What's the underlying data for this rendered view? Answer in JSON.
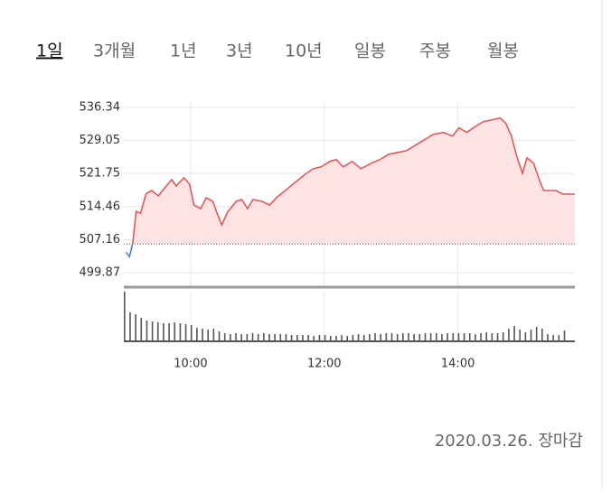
{
  "tabs": [
    "1일",
    "3개월",
    "1년",
    "3년",
    "10년",
    "일봉",
    "주봉",
    "월봉"
  ],
  "footer": "2020.03.26. 장마감",
  "chart_data": {
    "type": "line",
    "x": [
      542,
      545,
      548,
      551,
      555,
      560,
      565,
      571,
      576,
      583,
      587,
      594,
      599,
      603,
      609,
      614,
      620,
      624,
      628,
      633,
      641,
      646,
      651,
      656,
      664,
      671,
      677,
      687,
      697,
      703,
      710,
      717,
      725,
      731,
      737,
      745,
      753,
      762,
      770,
      778,
      786,
      794,
      802,
      810,
      818,
      827,
      835,
      841,
      848,
      855,
      863,
      871,
      878,
      883,
      888,
      893,
      898,
      902,
      908,
      913,
      917,
      928,
      934,
      945
    ],
    "values": [
      504.4,
      503.4,
      506.4,
      513.4,
      513,
      517.3,
      518,
      516.8,
      518.4,
      520.4,
      519,
      520.8,
      519.4,
      514.8,
      514,
      516.4,
      515.6,
      512.8,
      510.4,
      513.2,
      515.6,
      516,
      514,
      516,
      515.6,
      514.8,
      516.4,
      518.4,
      520.4,
      521.6,
      522.8,
      523.2,
      524.4,
      524.8,
      523.2,
      524.4,
      522.8,
      524,
      524.8,
      526,
      526.4,
      526.8,
      528,
      529.2,
      530.4,
      530.8,
      530,
      531.8,
      530.8,
      532,
      533.2,
      533.6,
      534,
      532.8,
      530,
      525.4,
      521.8,
      525.2,
      524,
      520.4,
      518,
      518,
      517.2,
      517.2
    ],
    "color": "#e05a5a",
    "down_color": "#4a7fe0",
    "fill_color": "#fde3e3",
    "base_value": 506.2,
    "xlim": [
      540,
      945
    ],
    "ylim": [
      496.7,
      537.7
    ],
    "yticks": [
      536.34,
      529.05,
      521.75,
      514.46,
      507.16,
      499.87
    ],
    "xticks": [
      {
        "value": 600,
        "label": "10:00"
      },
      {
        "value": 720,
        "label": "12:00"
      },
      {
        "value": 840,
        "label": "14:00"
      }
    ],
    "grid": true,
    "volume": {
      "color": "#555555",
      "vlim": [
        0,
        56
      ],
      "x": [
        540,
        545,
        550,
        555,
        560,
        565,
        570,
        575,
        580,
        585,
        590,
        595,
        600,
        605,
        610,
        615,
        620,
        625,
        630,
        635,
        640,
        645,
        650,
        655,
        660,
        665,
        670,
        675,
        680,
        685,
        690,
        695,
        700,
        705,
        710,
        715,
        720,
        725,
        730,
        735,
        740,
        745,
        750,
        755,
        760,
        765,
        770,
        775,
        780,
        785,
        790,
        795,
        800,
        805,
        810,
        815,
        820,
        825,
        830,
        835,
        840,
        845,
        850,
        855,
        860,
        865,
        870,
        875,
        880,
        885,
        890,
        895,
        900,
        905,
        910,
        915,
        920,
        925,
        930,
        935
      ],
      "values": [
        55,
        32,
        30,
        26,
        23,
        22,
        21,
        20,
        20,
        21,
        20,
        19,
        18,
        15,
        14,
        13,
        14,
        11,
        9,
        8,
        9,
        8,
        8,
        9,
        8,
        9,
        8,
        8,
        8,
        8,
        7,
        7,
        7,
        7,
        6,
        7,
        7,
        6,
        6,
        7,
        6,
        7,
        8,
        7,
        8,
        9,
        8,
        9,
        9,
        8,
        9,
        9,
        8,
        8,
        9,
        9,
        9,
        8,
        9,
        9,
        9,
        9,
        9,
        8,
        9,
        10,
        9,
        9,
        10,
        14,
        17,
        13,
        10,
        13,
        16,
        14,
        8,
        7,
        7,
        12
      ]
    }
  }
}
